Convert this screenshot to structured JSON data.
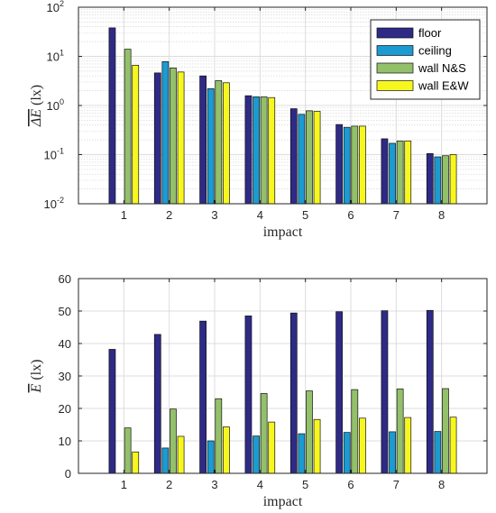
{
  "chart_data": [
    {
      "type": "bar",
      "yscale": "log",
      "categories": [
        "1",
        "2",
        "3",
        "4",
        "5",
        "6",
        "7",
        "8"
      ],
      "series": [
        {
          "name": "floor",
          "values": [
            38,
            4.6,
            4.0,
            1.58,
            0.86,
            0.41,
            0.21,
            0.105
          ]
        },
        {
          "name": "ceiling",
          "values": [
            null,
            7.8,
            2.2,
            1.5,
            0.66,
            0.36,
            0.17,
            0.09
          ]
        },
        {
          "name": "wall N&S",
          "values": [
            14,
            5.8,
            3.2,
            1.5,
            0.78,
            0.38,
            0.19,
            0.095
          ]
        },
        {
          "name": "wall E&W",
          "values": [
            6.6,
            4.8,
            2.9,
            1.45,
            0.76,
            0.38,
            0.19,
            0.1
          ]
        }
      ],
      "xlabel": "impact",
      "ylabel_main": "ΔE",
      "ylabel_unit": "(lx)",
      "ylim": [
        0.01,
        100
      ],
      "yticks": [
        {
          "base": "10",
          "exp": "-2"
        },
        {
          "base": "10",
          "exp": "-1"
        },
        {
          "base": "10",
          "exp": "0"
        },
        {
          "base": "10",
          "exp": "1"
        },
        {
          "base": "10",
          "exp": "2"
        }
      ],
      "grid": true,
      "legend": "top-right"
    },
    {
      "type": "bar",
      "categories": [
        "1",
        "2",
        "3",
        "4",
        "5",
        "6",
        "7",
        "8"
      ],
      "series": [
        {
          "name": "floor",
          "values": [
            38.2,
            42.8,
            46.9,
            48.5,
            49.4,
            49.8,
            50.1,
            50.2
          ]
        },
        {
          "name": "ceiling",
          "values": [
            0,
            7.8,
            10.0,
            11.5,
            12.2,
            12.6,
            12.8,
            12.9
          ]
        },
        {
          "name": "wall N&S",
          "values": [
            14.0,
            19.8,
            23.0,
            24.6,
            25.4,
            25.8,
            26.0,
            26.1
          ]
        },
        {
          "name": "wall E&W",
          "values": [
            6.6,
            11.4,
            14.3,
            15.8,
            16.6,
            17.0,
            17.2,
            17.3
          ]
        }
      ],
      "xlabel": "impact",
      "ylabel_main": "E",
      "ylabel_unit": "(lx)",
      "ylim": [
        0,
        60
      ],
      "yticks": [
        "0",
        "10",
        "20",
        "30",
        "40",
        "50",
        "60"
      ],
      "grid": true
    }
  ],
  "colors": {
    "floor": "#2e2a86",
    "ceiling": "#1b9bd1",
    "wall N&S": "#93c06a",
    "wall E&W": "#f7f720",
    "axis": "#262626",
    "grid": "#dcdcdc"
  }
}
